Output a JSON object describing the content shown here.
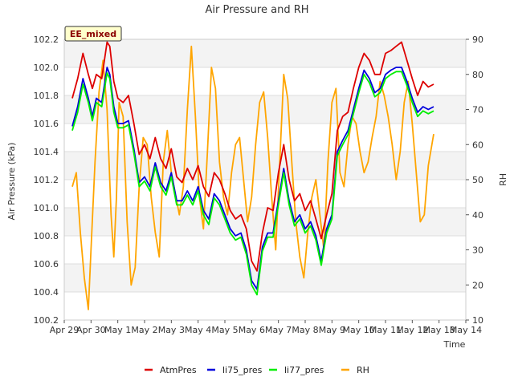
{
  "chart_data": {
    "type": "line",
    "title": "Air Pressure and RH",
    "badge": "EE_mixed",
    "xlabel": "Time",
    "ylabel": "Air Pressure (kPa)",
    "y2label": "RH",
    "x_ticks": [
      "Apr 29",
      "Apr 30",
      "May 1",
      "May 2",
      "May 3",
      "May 4",
      "May 5",
      "May 6",
      "May 7",
      "May 8",
      "May 9",
      "May 10",
      "May 11",
      "May 12",
      "May 13",
      "May 14"
    ],
    "xlim": [
      0,
      15
    ],
    "ylim": [
      100.2,
      102.2
    ],
    "y_ticks": [
      "100.2",
      "100.4",
      "100.6",
      "100.8",
      "101.0",
      "101.2",
      "101.4",
      "101.6",
      "101.8",
      "102.0",
      "102.2"
    ],
    "y2lim": [
      10,
      90
    ],
    "y2_ticks": [
      "10",
      "20",
      "30",
      "40",
      "50",
      "60",
      "70",
      "80",
      "90"
    ],
    "grid": true,
    "legend_position": "bottom",
    "series": [
      {
        "name": "AtmPres",
        "axis": "left",
        "color": "#dd0000",
        "x": [
          0.3,
          0.5,
          0.7,
          0.9,
          1.05,
          1.2,
          1.4,
          1.6,
          1.7,
          1.85,
          2.0,
          2.2,
          2.4,
          2.6,
          2.8,
          3.0,
          3.2,
          3.4,
          3.6,
          3.8,
          4.0,
          4.2,
          4.4,
          4.6,
          4.8,
          5.0,
          5.2,
          5.4,
          5.6,
          5.8,
          6.0,
          6.2,
          6.4,
          6.6,
          6.8,
          7.0,
          7.2,
          7.4,
          7.6,
          7.8,
          8.0,
          8.2,
          8.4,
          8.6,
          8.8,
          9.0,
          9.2,
          9.4,
          9.6,
          9.8,
          10.0,
          10.2,
          10.4,
          10.6,
          10.8,
          11.0,
          11.2,
          11.4,
          11.6,
          11.8,
          12.0,
          12.2,
          12.4,
          12.6,
          12.8,
          13.0,
          13.2,
          13.4,
          13.6,
          13.8
        ],
        "y": [
          101.78,
          101.92,
          102.1,
          101.95,
          101.85,
          101.95,
          101.92,
          102.18,
          102.15,
          101.9,
          101.78,
          101.75,
          101.8,
          101.6,
          101.38,
          101.45,
          101.35,
          101.5,
          101.35,
          101.28,
          101.42,
          101.22,
          101.18,
          101.28,
          101.2,
          101.3,
          101.15,
          101.08,
          101.25,
          101.2,
          101.1,
          100.98,
          100.92,
          100.95,
          100.85,
          100.62,
          100.55,
          100.82,
          101.0,
          100.98,
          101.25,
          101.45,
          101.2,
          101.05,
          101.1,
          100.98,
          101.05,
          100.92,
          100.78,
          100.95,
          101.1,
          101.55,
          101.65,
          101.68,
          101.85,
          102.0,
          102.1,
          102.05,
          101.95,
          101.95,
          102.1,
          102.12,
          102.15,
          102.18,
          102.05,
          101.92,
          101.8,
          101.9,
          101.86,
          101.88
        ]
      },
      {
        "name": "li75_pres",
        "axis": "left",
        "color": "#0000dd",
        "x": [
          0.3,
          0.5,
          0.7,
          0.9,
          1.05,
          1.2,
          1.4,
          1.6,
          1.7,
          1.85,
          2.0,
          2.2,
          2.4,
          2.6,
          2.8,
          3.0,
          3.2,
          3.4,
          3.6,
          3.8,
          4.0,
          4.2,
          4.4,
          4.6,
          4.8,
          5.0,
          5.2,
          5.4,
          5.6,
          5.8,
          6.0,
          6.2,
          6.4,
          6.6,
          6.8,
          7.0,
          7.2,
          7.4,
          7.6,
          7.8,
          8.0,
          8.2,
          8.4,
          8.6,
          8.8,
          9.0,
          9.2,
          9.4,
          9.6,
          9.8,
          10.0,
          10.2,
          10.4,
          10.6,
          10.8,
          11.0,
          11.2,
          11.4,
          11.6,
          11.8,
          12.0,
          12.2,
          12.4,
          12.6,
          12.8,
          13.0,
          13.2,
          13.4,
          13.6,
          13.8
        ],
        "y": [
          101.58,
          101.72,
          101.92,
          101.78,
          101.65,
          101.78,
          101.75,
          102.0,
          101.95,
          101.72,
          101.6,
          101.6,
          101.62,
          101.42,
          101.18,
          101.22,
          101.15,
          101.32,
          101.18,
          101.12,
          101.25,
          101.05,
          101.05,
          101.12,
          101.05,
          101.15,
          100.98,
          100.92,
          101.1,
          101.05,
          100.95,
          100.85,
          100.8,
          100.82,
          100.7,
          100.48,
          100.42,
          100.72,
          100.82,
          100.82,
          101.05,
          101.28,
          101.05,
          100.9,
          100.95,
          100.85,
          100.9,
          100.8,
          100.62,
          100.85,
          100.95,
          101.4,
          101.48,
          101.55,
          101.7,
          101.85,
          101.98,
          101.92,
          101.82,
          101.85,
          101.95,
          101.98,
          102.0,
          102.0,
          101.9,
          101.78,
          101.68,
          101.72,
          101.7,
          101.72
        ]
      },
      {
        "name": "li77_pres",
        "axis": "left",
        "color": "#00ee00",
        "x": [
          0.3,
          0.5,
          0.7,
          0.9,
          1.05,
          1.2,
          1.4,
          1.6,
          1.7,
          1.85,
          2.0,
          2.2,
          2.4,
          2.6,
          2.8,
          3.0,
          3.2,
          3.4,
          3.6,
          3.8,
          4.0,
          4.2,
          4.4,
          4.6,
          4.8,
          5.0,
          5.2,
          5.4,
          5.6,
          5.8,
          6.0,
          6.2,
          6.4,
          6.6,
          6.8,
          7.0,
          7.2,
          7.4,
          7.6,
          7.8,
          8.0,
          8.2,
          8.4,
          8.6,
          8.8,
          9.0,
          9.2,
          9.4,
          9.6,
          9.8,
          10.0,
          10.2,
          10.4,
          10.6,
          10.8,
          11.0,
          11.2,
          11.4,
          11.6,
          11.8,
          12.0,
          12.2,
          12.4,
          12.6,
          12.8,
          13.0,
          13.2,
          13.4,
          13.6,
          13.8
        ],
        "y": [
          101.55,
          101.68,
          101.88,
          101.75,
          101.62,
          101.75,
          101.72,
          101.96,
          101.92,
          101.68,
          101.57,
          101.57,
          101.59,
          101.39,
          101.15,
          101.19,
          101.12,
          101.29,
          101.15,
          101.09,
          101.22,
          101.02,
          101.02,
          101.09,
          101.02,
          101.12,
          100.95,
          100.88,
          101.07,
          101.02,
          100.92,
          100.82,
          100.77,
          100.79,
          100.67,
          100.45,
          100.38,
          100.69,
          100.79,
          100.79,
          101.02,
          101.25,
          101.02,
          100.87,
          100.92,
          100.82,
          100.87,
          100.77,
          100.59,
          100.82,
          100.92,
          101.37,
          101.45,
          101.52,
          101.67,
          101.82,
          101.95,
          101.89,
          101.79,
          101.82,
          101.92,
          101.95,
          101.97,
          101.97,
          101.87,
          101.75,
          101.65,
          101.69,
          101.67,
          101.69
        ]
      },
      {
        "name": "RH",
        "axis": "right",
        "color": "#ffa500",
        "x": [
          0.3,
          0.45,
          0.6,
          0.75,
          0.9,
          1.0,
          1.15,
          1.3,
          1.45,
          1.6,
          1.75,
          1.85,
          1.95,
          2.05,
          2.2,
          2.35,
          2.5,
          2.65,
          2.8,
          2.95,
          3.1,
          3.25,
          3.4,
          3.55,
          3.7,
          3.85,
          4.0,
          4.15,
          4.3,
          4.45,
          4.6,
          4.75,
          4.9,
          5.05,
          5.2,
          5.35,
          5.5,
          5.65,
          5.8,
          5.95,
          6.1,
          6.25,
          6.4,
          6.55,
          6.7,
          6.85,
          7.0,
          7.15,
          7.3,
          7.45,
          7.6,
          7.75,
          7.9,
          8.05,
          8.2,
          8.35,
          8.5,
          8.65,
          8.8,
          8.95,
          9.1,
          9.25,
          9.4,
          9.55,
          9.7,
          9.85,
          10.0,
          10.15,
          10.3,
          10.45,
          10.6,
          10.75,
          10.9,
          11.05,
          11.2,
          11.35,
          11.5,
          11.65,
          11.8,
          11.95,
          12.1,
          12.25,
          12.4,
          12.55,
          12.7,
          12.85,
          13.0,
          13.15,
          13.3,
          13.45,
          13.6,
          13.8
        ],
        "y": [
          48,
          52,
          35,
          22,
          13,
          30,
          55,
          75,
          84,
          70,
          40,
          28,
          45,
          72,
          68,
          38,
          20,
          25,
          48,
          62,
          60,
          45,
          35,
          28,
          55,
          64,
          52,
          46,
          40,
          48,
          70,
          88,
          68,
          45,
          36,
          58,
          82,
          76,
          55,
          45,
          40,
          52,
          60,
          62,
          50,
          38,
          45,
          60,
          72,
          75,
          62,
          45,
          30,
          55,
          80,
          73,
          55,
          38,
          28,
          22,
          35,
          45,
          50,
          40,
          30,
          55,
          72,
          76,
          52,
          48,
          60,
          68,
          66,
          58,
          52,
          55,
          62,
          68,
          78,
          74,
          68,
          60,
          50,
          58,
          72,
          78,
          66,
          52,
          38,
          40,
          54,
          63
        ]
      }
    ]
  }
}
